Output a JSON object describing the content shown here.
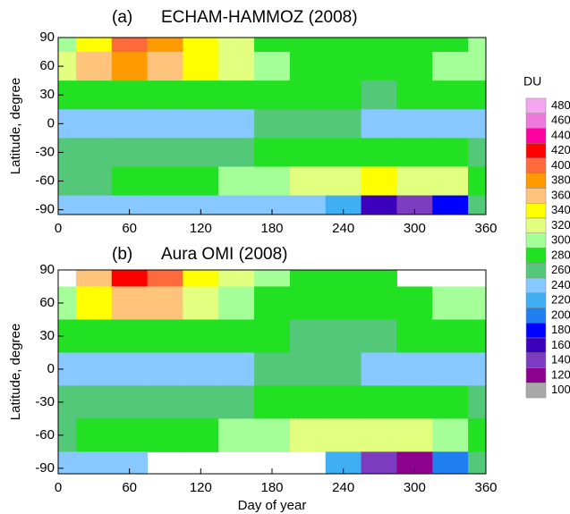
{
  "chart_data": [
    {
      "type": "heatmap",
      "panel_label": "(a)",
      "title": "ECHAM-HAMMOZ (2008)",
      "y_label": "Latitude, degree",
      "x": [
        0,
        30,
        60,
        90,
        120,
        150,
        180,
        210,
        240,
        270,
        300,
        330,
        360
      ],
      "y": [
        90,
        60,
        30,
        0,
        -30,
        -60,
        -90
      ],
      "z": [
        [
          300,
          340,
          400,
          380,
          340,
          320,
          290,
          280,
          280,
          290,
          290,
          290,
          300
        ],
        [
          320,
          360,
          380,
          370,
          340,
          320,
          300,
          290,
          280,
          280,
          290,
          300,
          310
        ],
        [
          290,
          290,
          290,
          290,
          290,
          290,
          280,
          280,
          280,
          270,
          280,
          280,
          290
        ],
        [
          250,
          250,
          250,
          250,
          250,
          250,
          260,
          260,
          260,
          250,
          250,
          250,
          250
        ],
        [
          260,
          270,
          270,
          270,
          270,
          270,
          280,
          290,
          290,
          290,
          290,
          280,
          270
        ],
        [
          260,
          270,
          280,
          280,
          290,
          300,
          310,
          320,
          330,
          340,
          330,
          320,
          290
        ],
        [
          250,
          250,
          250,
          250,
          250,
          250,
          250,
          250,
          230,
          160,
          150,
          180,
          260
        ]
      ],
      "xlim": [
        0,
        360
      ],
      "ylim": [
        -95,
        90
      ],
      "xticks": [
        0,
        60,
        120,
        180,
        240,
        300,
        360
      ],
      "yticks": [
        90,
        60,
        30,
        0,
        -30,
        -60,
        -90
      ]
    },
    {
      "type": "heatmap",
      "panel_label": "(b)",
      "title": "Aura OMI (2008)",
      "y_label": "Latitude, degree",
      "x_label": "Day of year",
      "x": [
        0,
        30,
        60,
        90,
        120,
        150,
        180,
        210,
        240,
        270,
        300,
        330,
        360
      ],
      "y": [
        90,
        60,
        30,
        0,
        -30,
        -60,
        -90
      ],
      "z": [
        [
          null,
          360,
          420,
          400,
          340,
          320,
          300,
          290,
          280,
          290,
          null,
          null,
          null
        ],
        [
          310,
          350,
          370,
          360,
          330,
          310,
          290,
          280,
          290,
          290,
          290,
          300,
          310
        ],
        [
          290,
          280,
          280,
          280,
          280,
          280,
          280,
          270,
          270,
          270,
          280,
          290,
          290
        ],
        [
          250,
          250,
          250,
          250,
          250,
          250,
          260,
          260,
          260,
          250,
          250,
          250,
          250
        ],
        [
          270,
          270,
          270,
          270,
          270,
          270,
          280,
          290,
          290,
          290,
          290,
          280,
          270
        ],
        [
          270,
          280,
          280,
          290,
          290,
          300,
          310,
          320,
          330,
          330,
          320,
          300,
          290
        ],
        [
          250,
          250,
          250,
          null,
          null,
          null,
          null,
          null,
          230,
          150,
          130,
          200,
          260
        ]
      ],
      "xlim": [
        0,
        360
      ],
      "ylim": [
        -95,
        90
      ],
      "xticks": [
        0,
        60,
        120,
        180,
        240,
        300,
        360
      ],
      "yticks": [
        90,
        60,
        30,
        0,
        -30,
        -60,
        -90
      ]
    }
  ],
  "colorbar": {
    "title": "DU",
    "levels": [
      480,
      460,
      440,
      420,
      400,
      380,
      360,
      340,
      320,
      300,
      280,
      260,
      240,
      220,
      200,
      180,
      160,
      140,
      120,
      100
    ],
    "colors": [
      "#f5a6f0",
      "#ee78dc",
      "#ff00a0",
      "#ff0000",
      "#ff6a3c",
      "#ff9a00",
      "#ffc47c",
      "#ffff00",
      "#e2ff80",
      "#a4ff98",
      "#22e022",
      "#52c878",
      "#86c8ff",
      "#40aef2",
      "#1f7ef0",
      "#0000ff",
      "#3c00bc",
      "#7c3cc0",
      "#8e008e",
      "#a8a8a8"
    ]
  }
}
